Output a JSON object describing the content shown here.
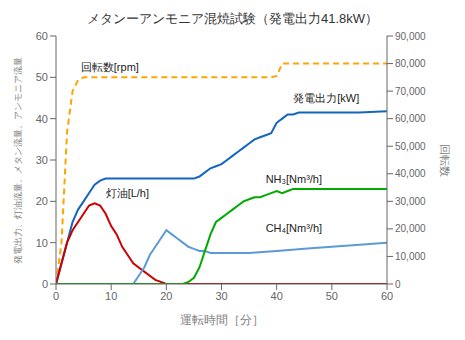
{
  "chart_data": {
    "type": "line",
    "title": "メタンーアンモニア混焼試験（発電出力41.8kW）",
    "x_label": "運転時間［分］",
    "y_label": "発電出力、灯油流量、メタン流量、アンモニア流量",
    "y2_label": "回転数",
    "xlim": [
      0,
      60
    ],
    "ylim": [
      0,
      60
    ],
    "y2lim": [
      0,
      90000
    ],
    "xticks": [
      0,
      10,
      20,
      30,
      40,
      50,
      60
    ],
    "yticks": [
      0,
      10,
      20,
      30,
      40,
      50,
      60
    ],
    "y2ticks": [
      0,
      {
        "value": 10000,
        "label": "10,000"
      },
      {
        "value": 20000,
        "label": "20,000"
      },
      {
        "value": 30000,
        "label": "30,000"
      },
      {
        "value": 40000,
        "label": "40,000"
      },
      {
        "value": 50000,
        "label": "50,000"
      },
      {
        "value": 60000,
        "label": "60,000"
      },
      {
        "value": 70000,
        "label": "70,000"
      },
      {
        "value": 80000,
        "label": "80,000"
      },
      {
        "value": 90000,
        "label": "90,000"
      }
    ],
    "grid": false,
    "series": [
      {
        "x": [
          0,
          1,
          2,
          3,
          4,
          5,
          6,
          7,
          8,
          9,
          10,
          39,
          40,
          41,
          60
        ],
        "values": [
          0,
          15000,
          55000,
          70000,
          74000,
          75000,
          75000,
          75000,
          75000,
          75000,
          75000,
          75000,
          75500,
          80000,
          80000
        ],
        "color": "#FFA500",
        "line_style": "dashed",
        "axis": "y2"
      },
      {
        "x": [
          0,
          1,
          2,
          3,
          4,
          5,
          6,
          7,
          8,
          9,
          10,
          15,
          20,
          25,
          26,
          27,
          28,
          29,
          30,
          31,
          32,
          33,
          34,
          35,
          36,
          37,
          38,
          39,
          40,
          41,
          42,
          43,
          44,
          45,
          50,
          55,
          60
        ],
        "values": [
          0,
          5,
          10,
          15,
          18,
          20,
          22,
          24,
          25,
          25.5,
          25.5,
          25.5,
          25.5,
          25.5,
          26,
          27,
          28,
          28.5,
          29,
          30,
          31,
          32,
          33,
          34,
          35,
          35.5,
          36,
          36.5,
          39,
          40,
          41,
          41,
          41.5,
          41.5,
          41.5,
          41.5,
          41.8
        ],
        "color": "#1565C0",
        "line_style": "solid"
      },
      {
        "x": [
          0,
          1,
          2,
          3,
          4,
          5,
          6,
          7,
          8,
          9,
          10,
          11,
          12,
          13,
          14,
          15,
          16,
          17,
          18,
          19,
          20,
          21,
          22,
          60
        ],
        "values": [
          0,
          5,
          10,
          13,
          15,
          17,
          19,
          19.5,
          19,
          17,
          14,
          12,
          9,
          7,
          5,
          4,
          3,
          2,
          1,
          0.5,
          0,
          0,
          0,
          0
        ],
        "color": "#CC0000",
        "line_style": "solid"
      },
      {
        "x": [
          0,
          10,
          14,
          15,
          16,
          17,
          18,
          19,
          20,
          21,
          22,
          23,
          24,
          25,
          26,
          27,
          28,
          29,
          30,
          35,
          40,
          45,
          50,
          55,
          60
        ],
        "values": [
          0,
          0,
          0,
          2,
          4,
          7,
          9,
          11,
          13,
          12,
          11,
          10,
          9,
          8.5,
          8,
          8,
          7.5,
          7.5,
          7.5,
          7.5,
          8,
          8.5,
          9,
          9.5,
          10
        ],
        "color": "#5B9BD5",
        "line_style": "solid"
      },
      {
        "x": [
          0,
          23,
          24,
          25,
          26,
          27,
          28,
          29,
          30,
          31,
          32,
          33,
          34,
          35,
          36,
          37,
          38,
          39,
          40,
          41,
          42,
          43,
          44,
          45,
          50,
          55,
          60
        ],
        "values": [
          0,
          0,
          0.5,
          1.5,
          4,
          8,
          12,
          15,
          16,
          17,
          18,
          19,
          20,
          20.5,
          21,
          21,
          21.5,
          22,
          22.5,
          22,
          22.5,
          23,
          23,
          23,
          23,
          23,
          23
        ],
        "color": "#00AA00",
        "line_style": "solid"
      }
    ],
    "annotations": [
      {
        "text": "回転数[rpm]",
        "x": 4.5,
        "y": 51.5
      },
      {
        "text": "発電出力[kW]",
        "x": 43,
        "y": 44
      },
      {
        "text": "灯油[L/h]",
        "x": 9,
        "y": 21
      },
      {
        "text": "NH₃[Nm³/h]",
        "x": 38,
        "y": 24.5
      },
      {
        "text": "CH₄[Nm³/h]",
        "x": 38,
        "y": 12.5
      }
    ]
  }
}
